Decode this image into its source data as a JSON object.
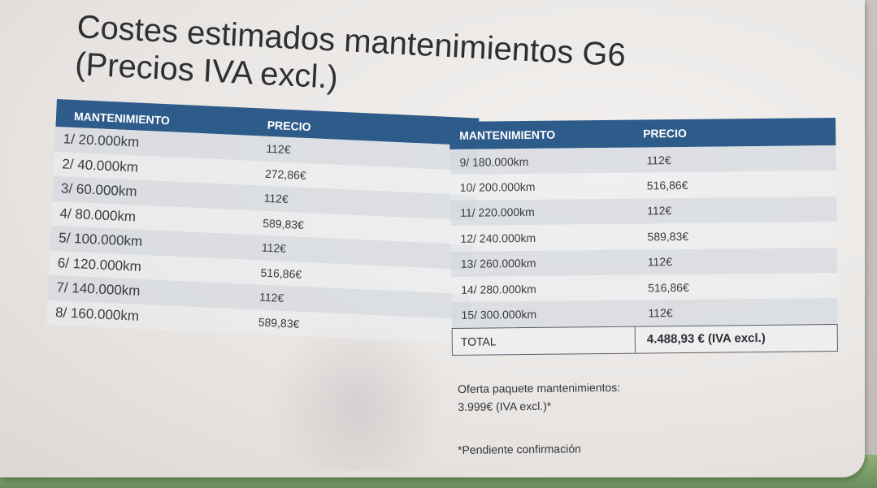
{
  "title": {
    "line1": "Costes estimados mantenimientos G6",
    "line2": "(Precios IVA excl.)"
  },
  "table_left": {
    "headers": {
      "maintenance": "MANTENIMIENTO",
      "price": "PRECIO"
    },
    "rows": [
      {
        "maintenance": "1/ 20.000km",
        "price": "112€"
      },
      {
        "maintenance": "2/ 40.000km",
        "price": "272,86€"
      },
      {
        "maintenance": "3/ 60.000km",
        "price": "112€"
      },
      {
        "maintenance": "4/ 80.000km",
        "price": "589,83€"
      },
      {
        "maintenance": "5/ 100.000km",
        "price": "112€"
      },
      {
        "maintenance": "6/ 120.000km",
        "price": "516,86€"
      },
      {
        "maintenance": "7/ 140.000km",
        "price": "112€"
      },
      {
        "maintenance": "8/ 160.000km",
        "price": "589,83€"
      }
    ]
  },
  "table_right": {
    "headers": {
      "maintenance": "MANTENIMIENTO",
      "price": "PRECIO"
    },
    "rows": [
      {
        "maintenance": "9/ 180.000km",
        "price": "112€"
      },
      {
        "maintenance": "10/ 200.000km",
        "price": "516,86€"
      },
      {
        "maintenance": "11/ 220.000km",
        "price": "112€"
      },
      {
        "maintenance": "12/ 240.000km",
        "price": "589,83€"
      },
      {
        "maintenance": "13/ 260.000km",
        "price": "112€"
      },
      {
        "maintenance": "14/ 280.000km",
        "price": "516,86€"
      },
      {
        "maintenance": "15/ 300.000km",
        "price": "112€"
      }
    ],
    "total": {
      "label": "TOTAL",
      "value": "4.488,93 € (IVA excl.)"
    }
  },
  "offer": {
    "line1": "Oferta paquete mantenimientos:",
    "line2": "3.999€ (IVA excl.)*"
  },
  "note": "*Pendiente confirmación",
  "colors": {
    "header_blue": "#2e5c8a",
    "paper": "#ecebea",
    "text": "#33353a"
  }
}
